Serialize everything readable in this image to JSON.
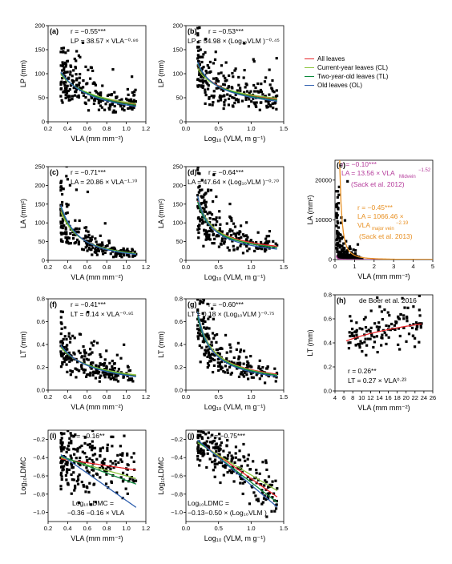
{
  "legend": {
    "items": [
      {
        "label": "All leaves",
        "color": "#e8262a"
      },
      {
        "label": "Current-year leaves (CL)",
        "color": "#8cc63e"
      },
      {
        "label": "Two-year-old leaves (TL)",
        "color": "#0c8a3c"
      },
      {
        "label": "Old leaves (OL)",
        "color": "#2e5fae"
      }
    ]
  },
  "panels": {
    "a": {
      "letter": "(a)",
      "r": "r = −0.55***",
      "eq": "LP = 38.57 × VLA⁻⁰·⁸⁶",
      "xlabel": "VLA (mm mm⁻²)",
      "ylabel": "LP (mm)"
    },
    "b": {
      "letter": "(b)",
      "r": "r = −0.53***",
      "eq": "LP = 54.98 × (Log₁₀VLM )⁻⁰·⁴⁵",
      "xlabel": "Log₁₀ (VLM, m g⁻¹)",
      "ylabel": "LP (mm)"
    },
    "c": {
      "letter": "(c)",
      "r": "r = −0.71***",
      "eq": "LA = 20.86 × VLA⁻¹·⁷⁰",
      "xlabel": "VLA (mm mm⁻²)",
      "ylabel": "LA (mm²)"
    },
    "d": {
      "letter": "(d)",
      "r": "r = −0.64***",
      "eq": "LA = 47.64 × (Log₁₀VLM )⁻⁰·⁷⁰",
      "xlabel": "Log₁₀ (VLM, m g⁻¹)",
      "ylabel": "LA (mm²)"
    },
    "e": {
      "letter": "(e)",
      "r1": "r = −0.10***",
      "eq1": "LA = 13.56 × VLA",
      "eq1_sub": "Midvein",
      "eq1_sup": "−1.52",
      "src1": "(Sack et al. 2012)",
      "r2": "r = −0.45***",
      "eq2a": "LA = 1066.46 ×",
      "eq2b": "VLA",
      "eq2_sub": "major vein",
      "eq2_sup": "−2.19",
      "src2": "(Sack et al. 2013)",
      "xlabel": "VLA (mm mm⁻²)",
      "ylabel": "LA (mm²)"
    },
    "f": {
      "letter": "(f)",
      "r": "r = −0.41***",
      "eq": "LT = 0.14 × VLA⁻⁰·⁹¹",
      "xlabel": "VLA (mm mm⁻²)",
      "ylabel": "LT (mm)"
    },
    "g": {
      "letter": "(g)",
      "r": "r = −0.60***",
      "eq": "LT = 0.18 × (Log₁₀VLM )⁻⁰·⁷⁵",
      "xlabel": "Log₁₀ (VLM, m g⁻¹)",
      "ylabel": "LT (mm)"
    },
    "h": {
      "letter": "(h)",
      "src": "de Boer et al. 2016",
      "r": "r = 0.26**",
      "eq": "LT = 0.27 × VLA⁰·²³",
      "xlabel": "VLA (mm mm⁻²)",
      "ylabel": "LT (mm)"
    },
    "i": {
      "letter": "(i)",
      "r": "r = −0.16**",
      "eq1": "Log₁₀LDMC =",
      "eq2": "−0.36 −0.16 × VLA",
      "xlabel": "VLA (mm mm⁻²)",
      "ylabel": "Log₁₀LDMC"
    },
    "j": {
      "letter": "(j)",
      "r": "r = −0.75***",
      "eq1": "Log₁₀LDMC =",
      "eq2": "−0.13−0.50 × (Log₁₀VLM )",
      "xlabel": "Log₁₀ (VLM, m g⁻¹)",
      "ylabel": "Log₁₀LDMC"
    }
  },
  "chart_data": [
    {
      "panel": "a",
      "type": "scatter",
      "xlim": [
        0.2,
        1.2
      ],
      "ylim": [
        0,
        200
      ],
      "xticks": [
        0.2,
        0.4,
        0.6,
        0.8,
        1.0,
        1.2
      ],
      "yticks": [
        0,
        50,
        100,
        150,
        200
      ],
      "series": [
        {
          "name": "All leaves",
          "model": "power",
          "a": 38.57,
          "b": -0.86
        },
        {
          "name": "Current-year leaves (CL)",
          "model": "power",
          "a": 40.5,
          "b": -0.8
        },
        {
          "name": "Two-year-old leaves (TL)",
          "model": "power",
          "a": 37.5,
          "b": -0.9
        },
        {
          "name": "Old leaves (OL)",
          "model": "power",
          "a": 35.0,
          "b": -0.98
        }
      ],
      "points": {
        "n": 230,
        "xmin": 0.33,
        "xmax": 1.1,
        "model": "power",
        "a": 38.57,
        "b": -0.86,
        "noise": 0.35
      }
    },
    {
      "panel": "b",
      "type": "scatter",
      "xlim": [
        0.0,
        1.5
      ],
      "ylim": [
        0,
        200
      ],
      "xticks": [
        0.0,
        0.5,
        1.0,
        1.5
      ],
      "yticks": [
        0,
        50,
        100,
        150,
        200
      ],
      "series": [
        {
          "name": "All leaves",
          "model": "power",
          "a": 54.98,
          "b": -0.45
        },
        {
          "name": "Current-year leaves (CL)",
          "model": "power",
          "a": 56.0,
          "b": -0.4
        },
        {
          "name": "Two-year-old leaves (TL)",
          "model": "power",
          "a": 53.0,
          "b": -0.48
        },
        {
          "name": "Old leaves (OL)",
          "model": "power",
          "a": 51.0,
          "b": -0.52
        }
      ],
      "points": {
        "n": 230,
        "xmin": 0.18,
        "xmax": 1.4,
        "model": "power",
        "a": 54.98,
        "b": -0.45,
        "noise": 0.35
      }
    },
    {
      "panel": "c",
      "type": "scatter",
      "xlim": [
        0.2,
        1.2
      ],
      "ylim": [
        0,
        250
      ],
      "xticks": [
        0.2,
        0.4,
        0.6,
        0.8,
        1.0,
        1.2
      ],
      "yticks": [
        0,
        50,
        100,
        150,
        200,
        250
      ],
      "series": [
        {
          "name": "All leaves",
          "model": "power",
          "a": 20.86,
          "b": -1.7
        },
        {
          "name": "Current-year leaves (CL)",
          "model": "power",
          "a": 21.5,
          "b": -1.62
        },
        {
          "name": "Two-year-old leaves (TL)",
          "model": "power",
          "a": 20.0,
          "b": -1.76
        },
        {
          "name": "Old leaves (OL)",
          "model": "power",
          "a": 19.0,
          "b": -1.85
        }
      ],
      "points": {
        "n": 230,
        "xmin": 0.33,
        "xmax": 1.1,
        "model": "power",
        "a": 20.86,
        "b": -1.7,
        "noise": 0.42
      }
    },
    {
      "panel": "d",
      "type": "scatter",
      "xlim": [
        0.0,
        1.5
      ],
      "ylim": [
        0,
        250
      ],
      "xticks": [
        0.0,
        0.5,
        1.0,
        1.5
      ],
      "yticks": [
        0,
        50,
        100,
        150,
        200,
        250
      ],
      "series": [
        {
          "name": "All leaves",
          "model": "power",
          "a": 47.64,
          "b": -0.7
        },
        {
          "name": "Current-year leaves (CL)",
          "model": "power",
          "a": 45.0,
          "b": -0.78
        },
        {
          "name": "Two-year-old leaves (TL)",
          "model": "power",
          "a": 44.0,
          "b": -0.74
        },
        {
          "name": "Old leaves (OL)",
          "model": "power",
          "a": 40.0,
          "b": -0.85
        }
      ],
      "points": {
        "n": 230,
        "xmin": 0.18,
        "xmax": 1.4,
        "model": "power",
        "a": 47.64,
        "b": -0.7,
        "noise": 0.42
      }
    },
    {
      "panel": "e",
      "type": "scatter",
      "xlim": [
        0,
        5
      ],
      "ylim": [
        0,
        25000
      ],
      "xticks": [
        0,
        1,
        2,
        3,
        4,
        5
      ],
      "yticks": [
        0,
        10000,
        20000
      ],
      "series": [
        {
          "name": "Sack et al. 2012",
          "model": "power",
          "a": 13.56,
          "b": -1.52,
          "color": "#b43a9a"
        },
        {
          "name": "Sack et al. 2013",
          "model": "power",
          "a": 1066.46,
          "b": -2.19,
          "color": "#e89023"
        }
      ],
      "points": {
        "n": 260,
        "xmin": 0.08,
        "xmax": 1.4,
        "model": "power",
        "a": 300,
        "b": -1.5,
        "noise": 0.9
      }
    },
    {
      "panel": "f",
      "type": "scatter",
      "xlim": [
        0.2,
        1.2
      ],
      "ylim": [
        0,
        0.8
      ],
      "xticks": [
        0.2,
        0.4,
        0.6,
        0.8,
        1.0,
        1.2
      ],
      "yticks": [
        0.0,
        0.2,
        0.4,
        0.6,
        0.8
      ],
      "series": [
        {
          "name": "All leaves",
          "model": "power",
          "a": 0.14,
          "b": -0.91
        },
        {
          "name": "Current-year leaves (CL)",
          "model": "power",
          "a": 0.145,
          "b": -0.85
        },
        {
          "name": "Two-year-old leaves (TL)",
          "model": "power",
          "a": 0.135,
          "b": -0.95
        },
        {
          "name": "Old leaves (OL)",
          "model": "power",
          "a": 0.13,
          "b": -1.0
        }
      ],
      "points": {
        "n": 230,
        "xmin": 0.33,
        "xmax": 1.1,
        "model": "power",
        "a": 0.14,
        "b": -0.91,
        "noise": 0.35
      }
    },
    {
      "panel": "g",
      "type": "scatter",
      "xlim": [
        0.0,
        1.5
      ],
      "ylim": [
        0,
        0.8
      ],
      "xticks": [
        0.0,
        0.5,
        1.0,
        1.5
      ],
      "yticks": [
        0.0,
        0.2,
        0.4,
        0.6,
        0.8
      ],
      "series": [
        {
          "name": "All leaves",
          "model": "power",
          "a": 0.18,
          "b": -0.75
        },
        {
          "name": "Current-year leaves (CL)",
          "model": "power",
          "a": 0.175,
          "b": -0.8
        },
        {
          "name": "Two-year-old leaves (TL)",
          "model": "power",
          "a": 0.17,
          "b": -0.78
        },
        {
          "name": "Old leaves (OL)",
          "model": "power",
          "a": 0.16,
          "b": -0.85
        }
      ],
      "points": {
        "n": 230,
        "xmin": 0.18,
        "xmax": 1.4,
        "model": "power",
        "a": 0.18,
        "b": -0.75,
        "noise": 0.32
      }
    },
    {
      "panel": "h",
      "type": "scatter",
      "xlim": [
        4,
        26
      ],
      "ylim": [
        0,
        0.8
      ],
      "xticks": [
        4,
        6,
        8,
        10,
        12,
        14,
        16,
        18,
        20,
        22,
        24,
        26
      ],
      "yticks": [
        0.0,
        0.2,
        0.4,
        0.6,
        0.8
      ],
      "series": [
        {
          "name": "de Boer et al. 2016",
          "model": "power",
          "a": 0.27,
          "b": 0.23,
          "color": "#e8262a"
        }
      ],
      "points": {
        "n": 130,
        "xmin": 6.5,
        "xmax": 23.5,
        "model": "power",
        "a": 0.27,
        "b": 0.23,
        "noise": 0.18
      }
    },
    {
      "panel": "i",
      "type": "scatter",
      "xlim": [
        0.2,
        1.2
      ],
      "ylim": [
        -1.1,
        -0.1
      ],
      "xticks": [
        0.2,
        0.4,
        0.6,
        0.8,
        1.0,
        1.2
      ],
      "yticks": [
        -1.0,
        -0.8,
        -0.6,
        -0.4,
        -0.2
      ],
      "series": [
        {
          "name": "All leaves",
          "model": "linear",
          "a": -0.36,
          "b": -0.16
        },
        {
          "name": "Current-year leaves (CL)",
          "model": "linear",
          "a": -0.3,
          "b": -0.3
        },
        {
          "name": "Two-year-old leaves (TL)",
          "model": "linear",
          "a": -0.25,
          "b": -0.4
        },
        {
          "name": "Old leaves (OL)",
          "model": "linear",
          "a": -0.12,
          "b": -0.75
        }
      ],
      "points": {
        "n": 230,
        "xmin": 0.33,
        "xmax": 1.1,
        "model": "linear",
        "a": -0.36,
        "b": -0.16,
        "noise": 0.18
      }
    },
    {
      "panel": "j",
      "type": "scatter",
      "xlim": [
        0.0,
        1.5
      ],
      "ylim": [
        -1.1,
        -0.1
      ],
      "xticks": [
        0.0,
        0.5,
        1.0,
        1.5
      ],
      "yticks": [
        -1.0,
        -0.8,
        -0.6,
        -0.4,
        -0.2
      ],
      "series": [
        {
          "name": "All leaves",
          "model": "linear",
          "a": -0.13,
          "b": -0.5
        },
        {
          "name": "Current-year leaves (CL)",
          "model": "linear",
          "a": -0.16,
          "b": -0.43
        },
        {
          "name": "Two-year-old leaves (TL)",
          "model": "linear",
          "a": -0.12,
          "b": -0.55
        },
        {
          "name": "Old leaves (OL)",
          "model": "linear",
          "a": -0.1,
          "b": -0.6
        }
      ],
      "points": {
        "n": 230,
        "xmin": 0.18,
        "xmax": 1.4,
        "model": "linear",
        "a": -0.13,
        "b": -0.5,
        "noise": 0.12
      }
    }
  ]
}
